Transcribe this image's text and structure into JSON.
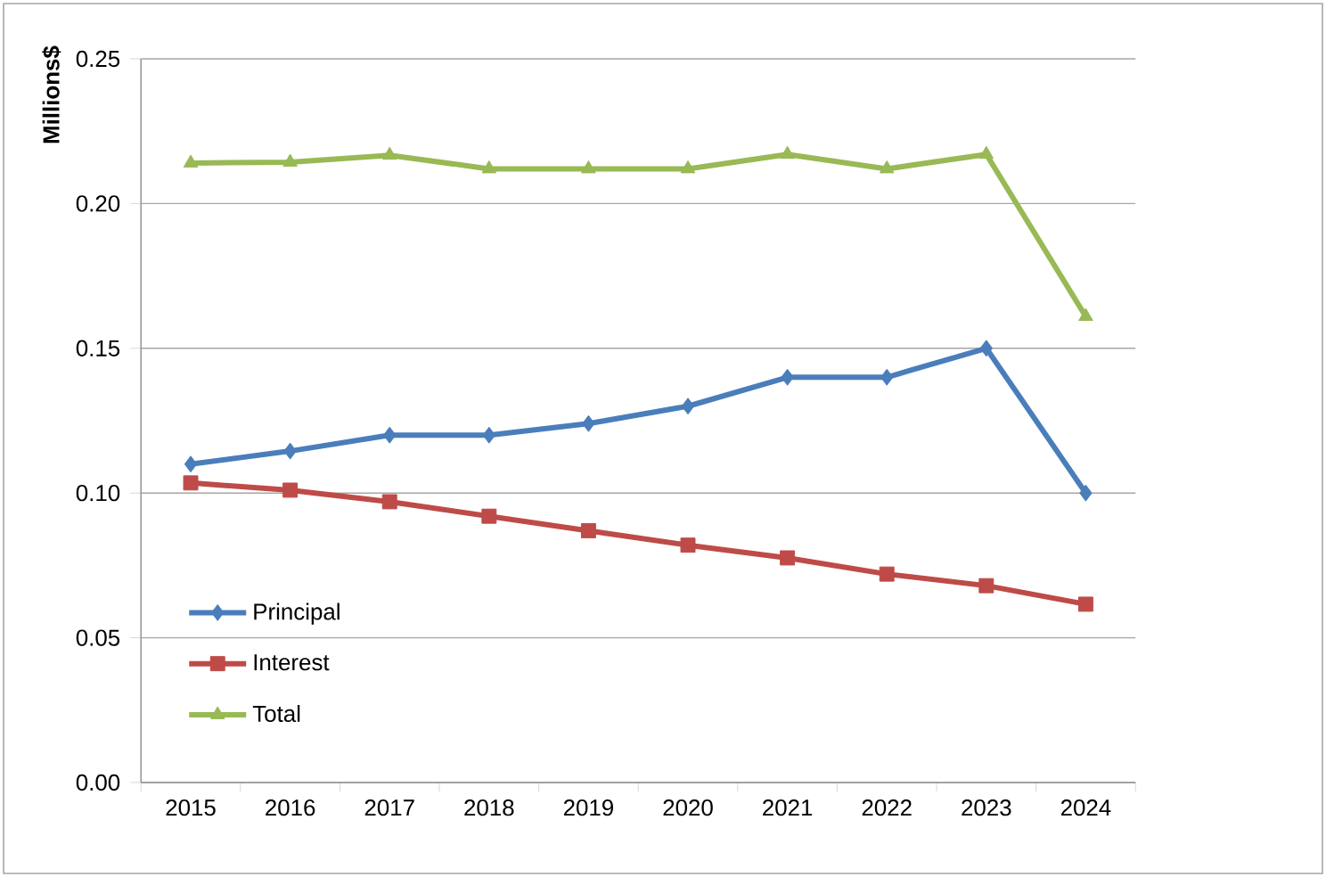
{
  "chart_data": {
    "type": "line",
    "ylabel": "Millions$",
    "categories": [
      "2015",
      "2016",
      "2017",
      "2018",
      "2019",
      "2020",
      "2021",
      "2022",
      "2023",
      "2024"
    ],
    "series": [
      {
        "name": "Principal",
        "color": "#4a7ebb",
        "marker": "diamond",
        "values": [
          0.11,
          0.1145,
          0.12,
          0.12,
          0.124,
          0.13,
          0.14,
          0.14,
          0.15,
          0.1
        ]
      },
      {
        "name": "Interest",
        "color": "#be4b48",
        "marker": "square",
        "values": [
          0.1035,
          0.101,
          0.097,
          0.092,
          0.087,
          0.082,
          0.0776,
          0.072,
          0.068,
          0.0616
        ]
      },
      {
        "name": "Total",
        "color": "#98b954",
        "marker": "triangle",
        "values": [
          0.214,
          0.2143,
          0.2167,
          0.212,
          0.212,
          0.212,
          0.217,
          0.212,
          0.217,
          0.161
        ]
      }
    ],
    "ylim": [
      0,
      0.25
    ],
    "yticks": [
      {
        "value": 0,
        "label": "0.00"
      },
      {
        "value": 0.05,
        "label": "0.05"
      },
      {
        "value": 0.1,
        "label": "0.10"
      },
      {
        "value": 0.15,
        "label": "0.15"
      },
      {
        "value": 0.2,
        "label": "0.20"
      },
      {
        "value": 0.25,
        "label": "0.25"
      }
    ],
    "grid": "y",
    "legend": "bottom left",
    "line_style": "solid"
  }
}
